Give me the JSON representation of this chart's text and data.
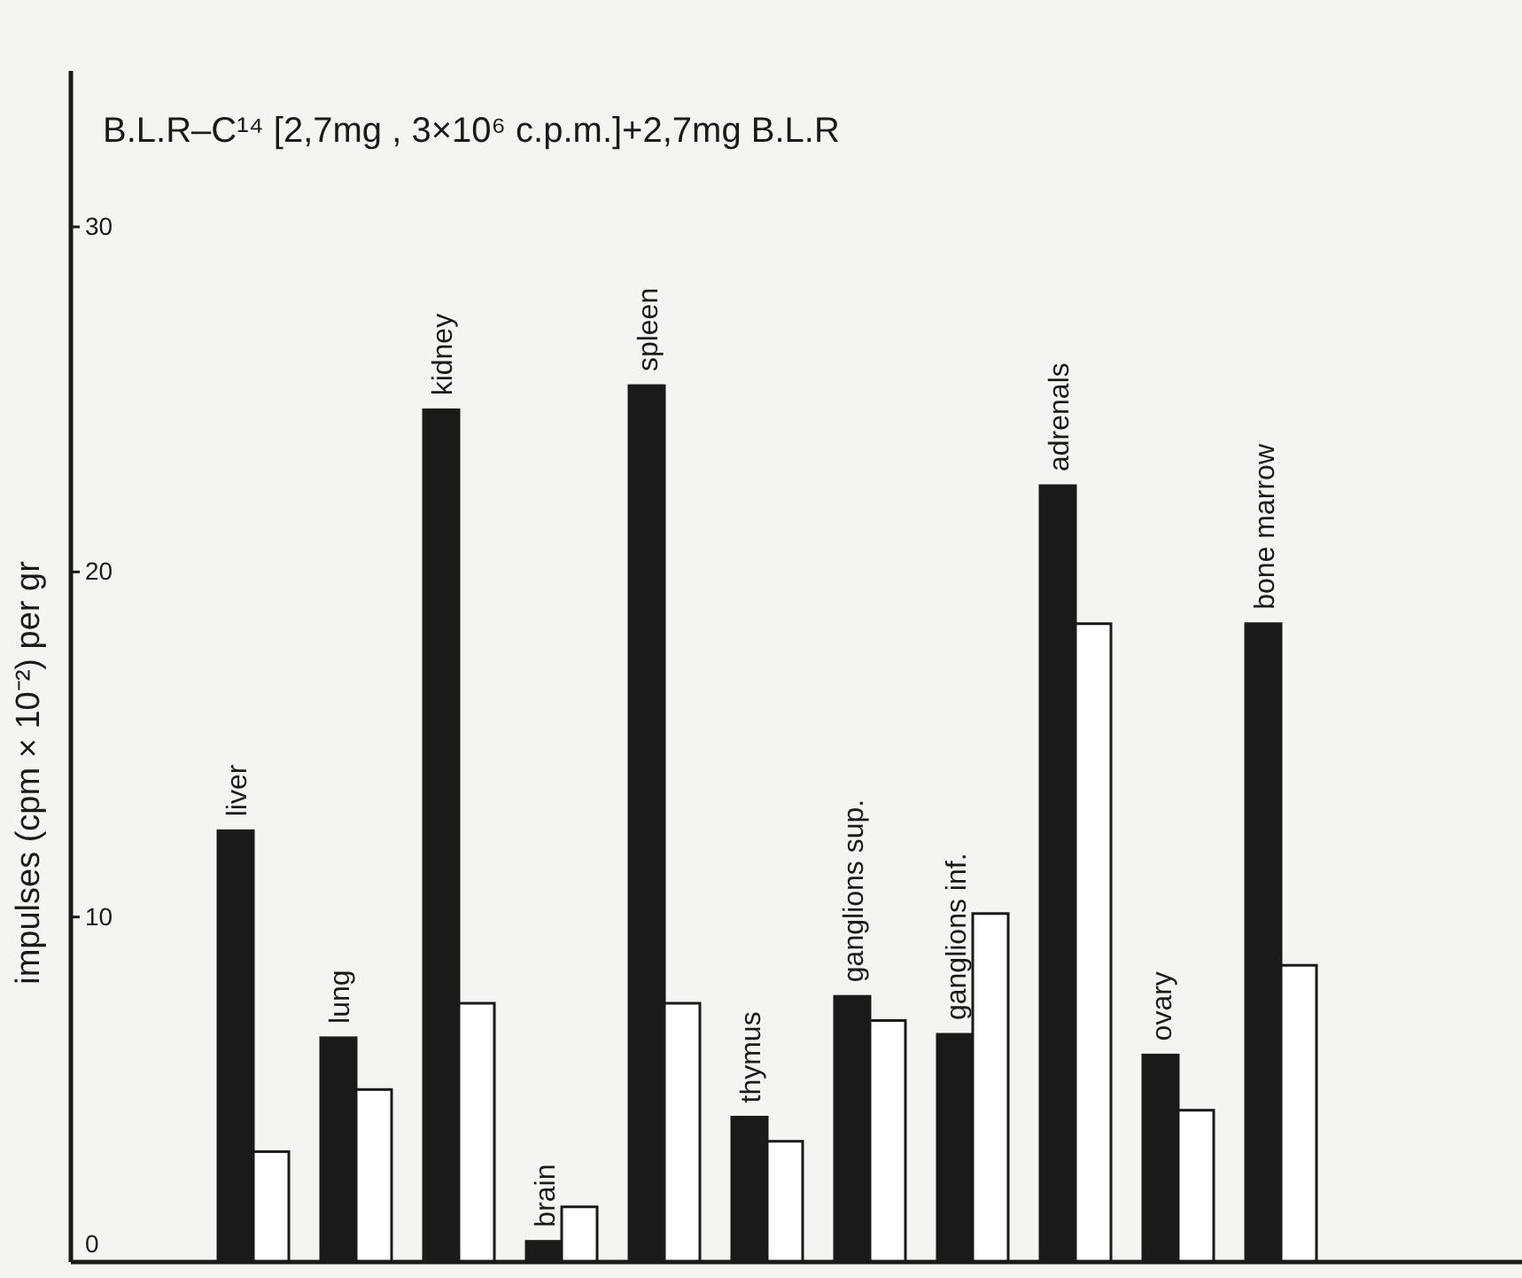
{
  "chart_data": {
    "type": "bar",
    "title": "B.L.R–C¹⁴ [2,7mg , 3×10⁶ c.p.m.]+2,7mg B.L.R",
    "ylabel": "impulses (cpm × 10⁻²) per gr",
    "categories": [
      "liver",
      "lung",
      "kidney",
      "brain",
      "spleen",
      "thymus",
      "ganglions sup.",
      "ganglions inf.",
      "adrenals",
      "ovary",
      "bone marrow"
    ],
    "series": [
      {
        "color": "#1a1a1a",
        "values": [
          12.5,
          6.5,
          24.7,
          0.6,
          25.4,
          4.2,
          7.7,
          6.6,
          22.5,
          6.0,
          18.5
        ]
      },
      {
        "color": "#ffffff",
        "values": [
          3.2,
          5.0,
          7.5,
          1.6,
          7.5,
          3.5,
          7.0,
          10.1,
          18.5,
          4.4,
          8.6
        ]
      }
    ],
    "ylim": [
      0,
      30
    ],
    "yticks": [
      0,
      10,
      20,
      30
    ],
    "grid": false
  }
}
